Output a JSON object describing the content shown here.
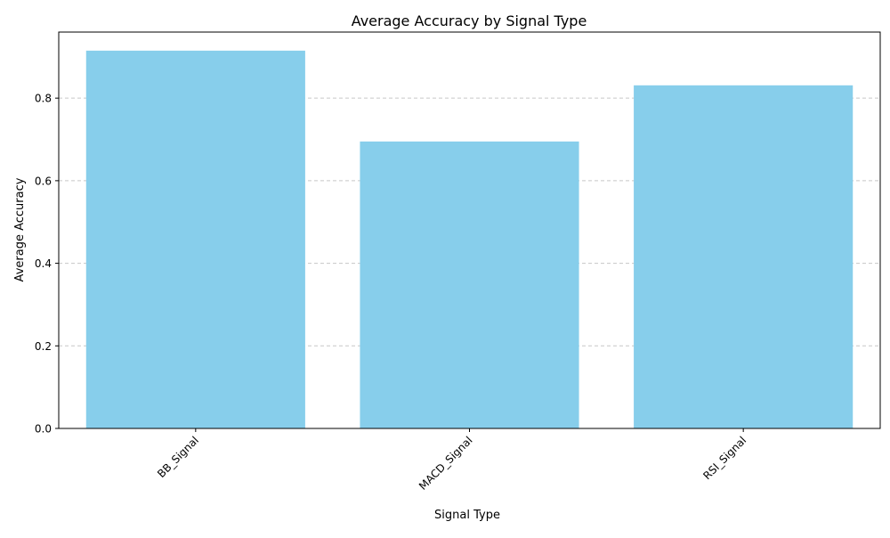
{
  "chart_data": {
    "type": "bar",
    "title": "Average Accuracy by Signal Type",
    "xlabel": "Signal Type",
    "ylabel": "Average Accuracy",
    "categories": [
      "BB_Signal",
      "MACD_Signal",
      "RSI_Signal"
    ],
    "values": [
      0.915,
      0.695,
      0.831
    ],
    "ylim": [
      0,
      0.96
    ],
    "yticks": [
      0.0,
      0.2,
      0.4,
      0.6,
      0.8
    ],
    "ytick_labels": [
      "0.0",
      "0.2",
      "0.4",
      "0.6",
      "0.8"
    ],
    "grid": "y-dashed",
    "legend": "none",
    "bar_color": "#87CEEB",
    "xtick_rotation": 45
  }
}
